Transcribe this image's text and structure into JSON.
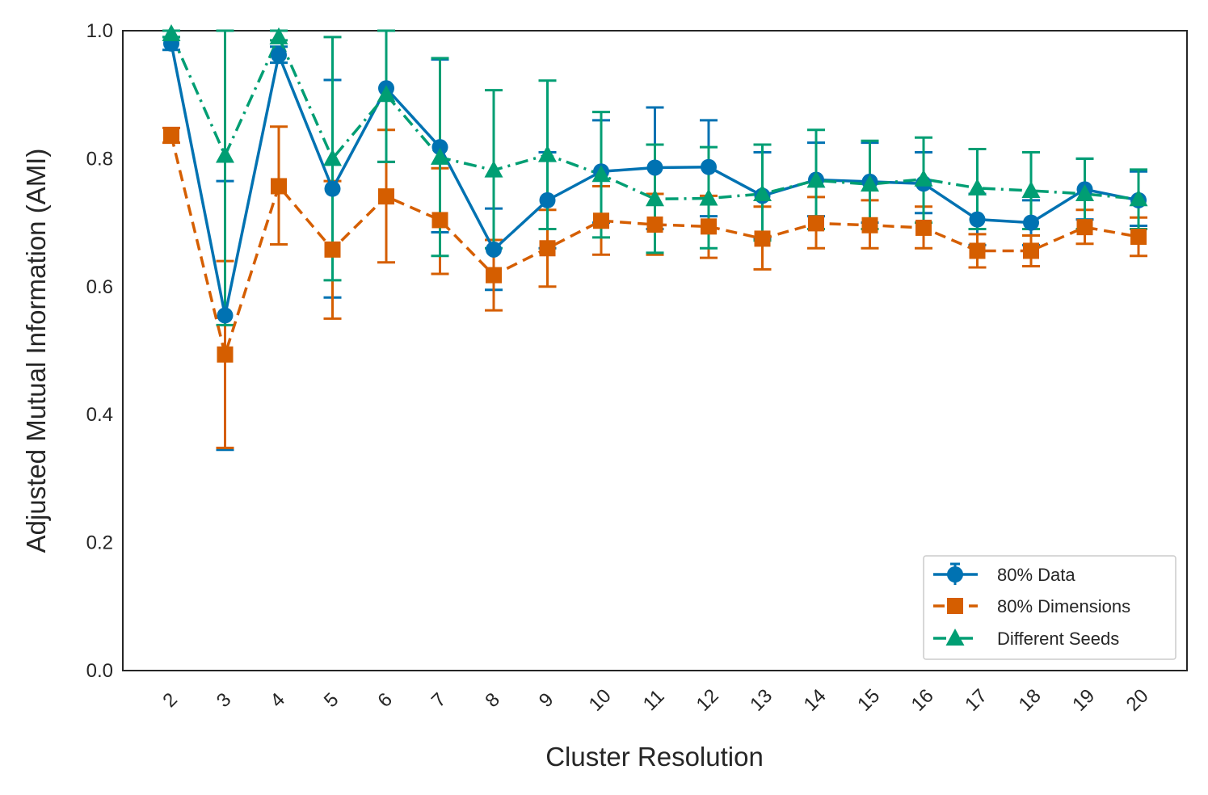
{
  "chart_data": {
    "type": "line",
    "title": "",
    "xlabel": "Cluster Resolution",
    "ylabel": "Adjusted Mutual Information (AMI)",
    "categories": [
      "2",
      "3",
      "4",
      "5",
      "6",
      "7",
      "8",
      "9",
      "10",
      "11",
      "12",
      "13",
      "14",
      "15",
      "16",
      "17",
      "18",
      "19",
      "20"
    ],
    "ylim": [
      0.0,
      1.0
    ],
    "yticks": [
      "0.0",
      "0.2",
      "0.4",
      "0.6",
      "0.8",
      "1.0"
    ],
    "grid": false,
    "legend_position": "bottom-right",
    "series": [
      {
        "name": "80% Data",
        "color": "#0072b2",
        "marker": "circle",
        "linestyle": "solid",
        "values": [
          0.98,
          0.555,
          0.962,
          0.753,
          0.91,
          0.818,
          0.658,
          0.735,
          0.78,
          0.786,
          0.787,
          0.742,
          0.767,
          0.764,
          0.761,
          0.705,
          0.7,
          0.752,
          0.735
        ],
        "err_low": [
          0.97,
          0.345,
          0.95,
          0.583,
          0.795,
          0.685,
          0.595,
          0.66,
          0.7,
          0.69,
          0.71,
          0.675,
          0.71,
          0.7,
          0.715,
          0.665,
          0.665,
          0.705,
          0.695
        ],
        "err_high": [
          0.99,
          0.765,
          0.975,
          0.923,
          1.0,
          0.955,
          0.722,
          0.81,
          0.86,
          0.88,
          0.86,
          0.81,
          0.825,
          0.825,
          0.81,
          0.745,
          0.735,
          0.8,
          0.78
        ]
      },
      {
        "name": "80% Dimensions",
        "color": "#d55e00",
        "marker": "square",
        "linestyle": "dashed",
        "values": [
          0.836,
          0.494,
          0.757,
          0.658,
          0.741,
          0.704,
          0.618,
          0.66,
          0.703,
          0.697,
          0.694,
          0.675,
          0.699,
          0.696,
          0.692,
          0.656,
          0.656,
          0.693,
          0.678
        ],
        "err_low": [
          0.825,
          0.348,
          0.666,
          0.55,
          0.638,
          0.62,
          0.563,
          0.6,
          0.65,
          0.65,
          0.645,
          0.627,
          0.66,
          0.66,
          0.66,
          0.63,
          0.632,
          0.667,
          0.648
        ],
        "err_high": [
          0.848,
          0.64,
          0.85,
          0.765,
          0.845,
          0.785,
          0.673,
          0.72,
          0.757,
          0.745,
          0.742,
          0.725,
          0.74,
          0.735,
          0.725,
          0.682,
          0.68,
          0.72,
          0.708
        ]
      },
      {
        "name": "Different Seeds",
        "color": "#009e73",
        "marker": "triangle",
        "linestyle": "dashdot",
        "values": [
          0.995,
          0.805,
          0.99,
          0.8,
          0.9,
          0.802,
          0.782,
          0.806,
          0.775,
          0.737,
          0.738,
          0.745,
          0.766,
          0.76,
          0.768,
          0.754,
          0.75,
          0.745,
          0.737
        ],
        "err_low": [
          0.99,
          0.54,
          0.985,
          0.61,
          0.795,
          0.648,
          0.66,
          0.69,
          0.677,
          0.653,
          0.66,
          0.672,
          0.69,
          0.69,
          0.7,
          0.69,
          0.69,
          0.69,
          0.69
        ],
        "err_high": [
          1.0,
          1.0,
          1.0,
          0.99,
          1.0,
          0.957,
          0.907,
          0.922,
          0.873,
          0.822,
          0.818,
          0.822,
          0.845,
          0.828,
          0.833,
          0.815,
          0.81,
          0.8,
          0.783
        ]
      }
    ]
  }
}
